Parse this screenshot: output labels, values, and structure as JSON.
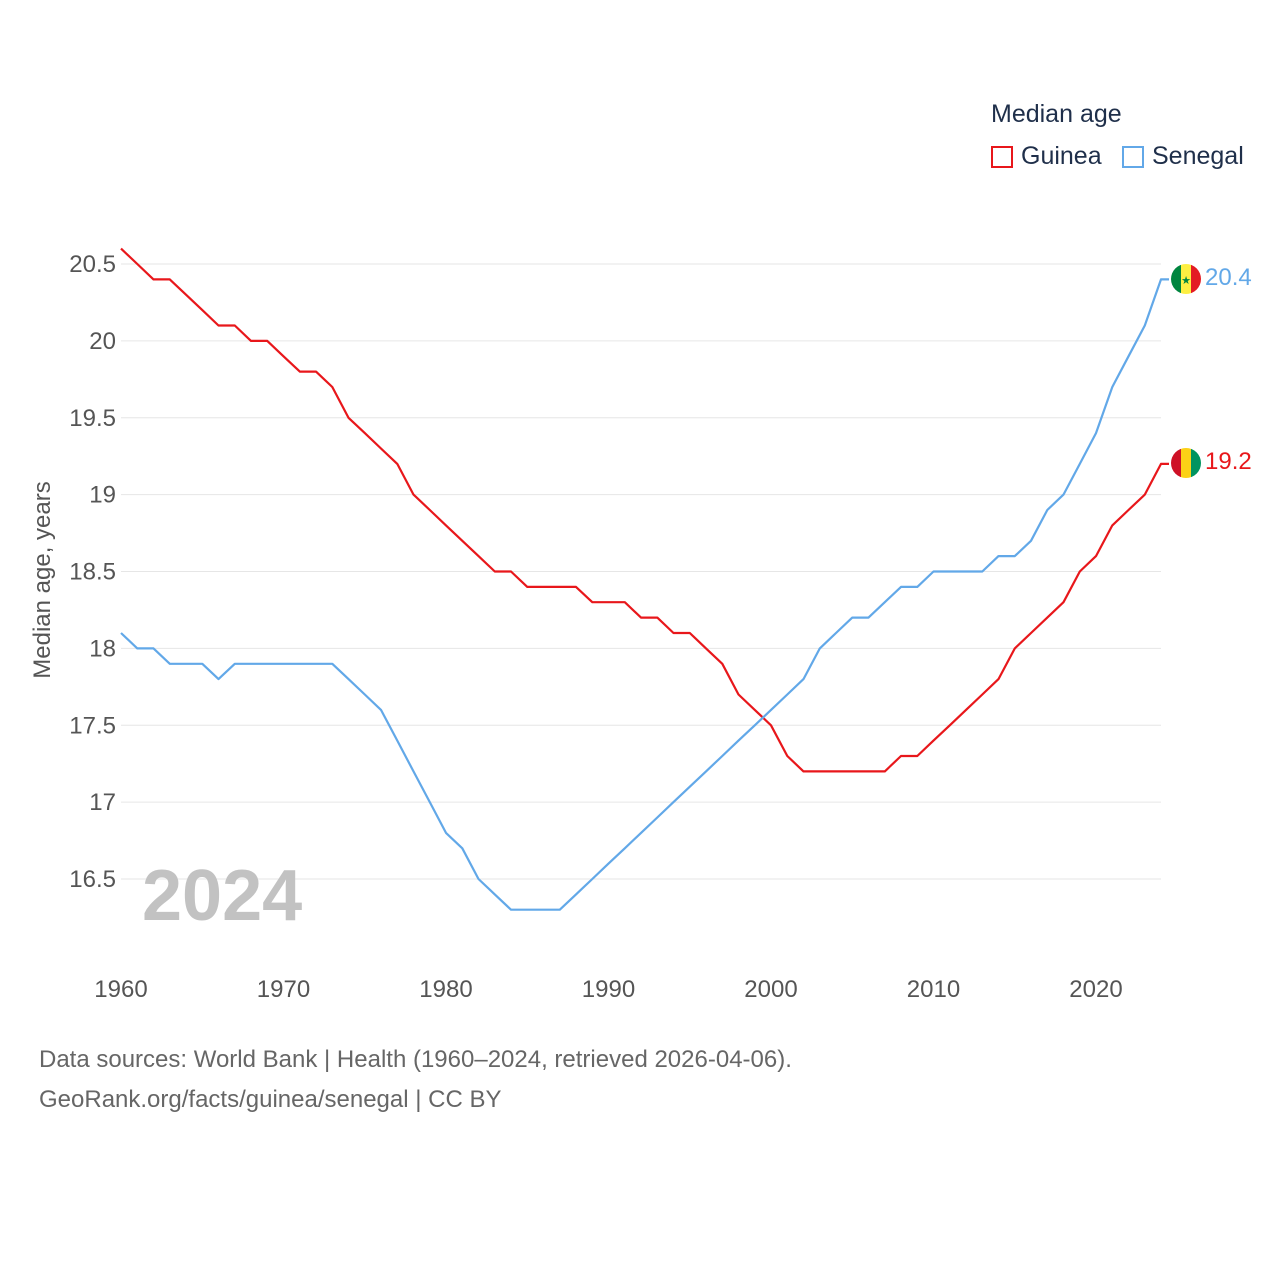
{
  "legend": {
    "title": "Median age",
    "items": [
      {
        "label": "Guinea",
        "color": "#e8171b"
      },
      {
        "label": "Senegal",
        "color": "#62a8e8"
      }
    ]
  },
  "year_label": "2024",
  "end_labels": {
    "senegal": "20.4",
    "guinea": "19.2"
  },
  "sources": {
    "line1": "Data sources: World Bank | Health (1960–2024, retrieved 2026-04-06).",
    "line2": "GeoRank.org/facts/guinea/senegal | CC BY"
  },
  "chart_data": {
    "type": "line",
    "title": "Median age",
    "xlabel": "",
    "ylabel": "Median age, years",
    "xlim": [
      1960,
      2024
    ],
    "ylim": [
      16.0,
      20.6
    ],
    "x_ticks": [
      1960,
      1970,
      1980,
      1990,
      2000,
      2010,
      2020
    ],
    "y_ticks": [
      16.5,
      17,
      17.5,
      18,
      18.5,
      19,
      19.5,
      20,
      20.5
    ],
    "y_tick_labels": [
      "16.5",
      "17",
      "17.5",
      "18",
      "18.5",
      "19",
      "19.5",
      "20",
      "20.5"
    ],
    "grid": true,
    "x": [
      1960,
      1961,
      1962,
      1963,
      1964,
      1965,
      1966,
      1967,
      1968,
      1969,
      1970,
      1971,
      1972,
      1973,
      1974,
      1975,
      1976,
      1977,
      1978,
      1979,
      1980,
      1981,
      1982,
      1983,
      1984,
      1985,
      1986,
      1987,
      1988,
      1989,
      1990,
      1991,
      1992,
      1993,
      1994,
      1995,
      1996,
      1997,
      1998,
      1999,
      2000,
      2001,
      2002,
      2003,
      2004,
      2005,
      2006,
      2007,
      2008,
      2009,
      2010,
      2011,
      2012,
      2013,
      2014,
      2015,
      2016,
      2017,
      2018,
      2019,
      2020,
      2021,
      2022,
      2023,
      2024
    ],
    "series": [
      {
        "name": "Guinea",
        "color": "#e8171b",
        "values": [
          20.6,
          20.5,
          20.4,
          20.4,
          20.3,
          20.2,
          20.1,
          20.1,
          20.0,
          20.0,
          19.9,
          19.8,
          19.8,
          19.7,
          19.5,
          19.4,
          19.3,
          19.2,
          19.0,
          18.9,
          18.8,
          18.7,
          18.6,
          18.5,
          18.5,
          18.4,
          18.4,
          18.4,
          18.4,
          18.3,
          18.3,
          18.3,
          18.2,
          18.2,
          18.1,
          18.1,
          18.0,
          17.9,
          17.7,
          17.6,
          17.5,
          17.3,
          17.2,
          17.2,
          17.2,
          17.2,
          17.2,
          17.2,
          17.3,
          17.3,
          17.4,
          17.5,
          17.6,
          17.7,
          17.8,
          18.0,
          18.1,
          18.2,
          18.3,
          18.5,
          18.6,
          18.8,
          18.9,
          19.0,
          19.2
        ]
      },
      {
        "name": "Senegal",
        "color": "#62a8e8",
        "values": [
          18.1,
          18.0,
          18.0,
          17.9,
          17.9,
          17.9,
          17.8,
          17.9,
          17.9,
          17.9,
          17.9,
          17.9,
          17.9,
          17.9,
          17.8,
          17.7,
          17.6,
          17.4,
          17.2,
          17.0,
          16.8,
          16.7,
          16.5,
          16.4,
          16.3,
          16.3,
          16.3,
          16.3,
          16.4,
          16.5,
          16.6,
          16.7,
          16.8,
          16.9,
          17.0,
          17.1,
          17.2,
          17.3,
          17.4,
          17.5,
          17.6,
          17.7,
          17.8,
          18.0,
          18.1,
          18.2,
          18.2,
          18.3,
          18.4,
          18.4,
          18.5,
          18.5,
          18.5,
          18.5,
          18.6,
          18.6,
          18.7,
          18.9,
          19.0,
          19.2,
          19.4,
          19.7,
          19.9,
          20.1,
          20.4
        ]
      }
    ]
  }
}
